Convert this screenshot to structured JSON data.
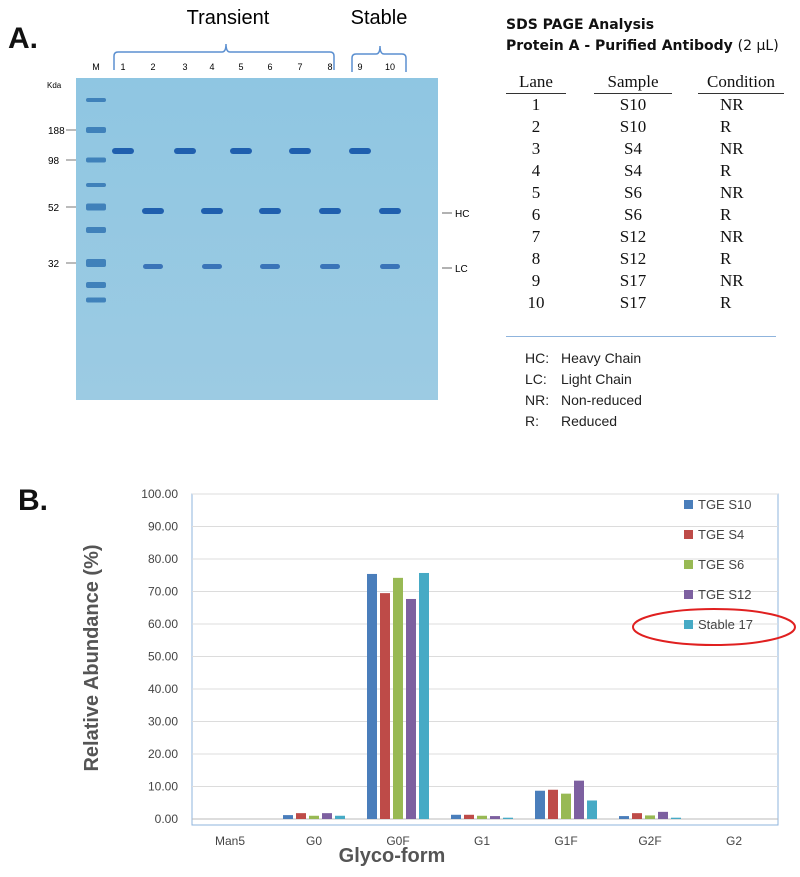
{
  "panel_a": {
    "label": "A.",
    "gel": {
      "group_labels": [
        "Transient",
        "Stable"
      ],
      "lane_labels": [
        "M",
        "1",
        "2",
        "3",
        "4",
        "5",
        "6",
        "7",
        "8",
        "9",
        "10"
      ],
      "kda_label": "Kda",
      "markers": [
        "188",
        "98",
        "52",
        "32"
      ],
      "band_labels": [
        "HC",
        "LC"
      ]
    },
    "title": "SDS PAGE Analysis",
    "subtitle_bold": "Protein A - Purified Antibody",
    "subtitle_normal": "(2 µL)",
    "table": {
      "headers": [
        "Lane",
        "Sample",
        "Condition"
      ],
      "rows": [
        [
          "1",
          "S10",
          "NR"
        ],
        [
          "2",
          "S10",
          "R"
        ],
        [
          "3",
          "S4",
          "NR"
        ],
        [
          "4",
          "S4",
          "R"
        ],
        [
          "5",
          "S6",
          "NR"
        ],
        [
          "6",
          "S6",
          "R"
        ],
        [
          "7",
          "S12",
          "NR"
        ],
        [
          "8",
          "S12",
          "R"
        ],
        [
          "9",
          "S17",
          "NR"
        ],
        [
          "10",
          "S17",
          "R"
        ]
      ]
    },
    "key": [
      [
        "HC:",
        "Heavy Chain"
      ],
      [
        "LC:",
        "Light Chain"
      ],
      [
        "NR:",
        "Non-reduced"
      ],
      [
        "R:",
        "Reduced"
      ]
    ]
  },
  "panel_b": {
    "label": "B."
  },
  "chart_data": {
    "type": "bar",
    "xlabel": "Glyco-form",
    "ylabel": "Relative Abundance (%)",
    "ylim": [
      0,
      100
    ],
    "yticks": [
      "0.00",
      "10.00",
      "20.00",
      "30.00",
      "40.00",
      "50.00",
      "60.00",
      "70.00",
      "80.00",
      "90.00",
      "100.00"
    ],
    "grid": true,
    "legend_position": "right",
    "categories": [
      "Man5",
      "G0",
      "G0F",
      "G1",
      "G1F",
      "G2F",
      "G2"
    ],
    "series": [
      {
        "name": "TGE S10",
        "color": "#4a7ebb",
        "values": [
          0,
          1.2,
          75.4,
          1.3,
          8.7,
          0.9,
          0
        ]
      },
      {
        "name": "TGE S4",
        "color": "#be4b48",
        "values": [
          0,
          1.8,
          69.5,
          1.3,
          9.0,
          1.8,
          0
        ]
      },
      {
        "name": "TGE S6",
        "color": "#98b954",
        "values": [
          0,
          1.0,
          74.2,
          1.0,
          7.8,
          1.1,
          0
        ]
      },
      {
        "name": "TGE S12",
        "color": "#7d60a0",
        "values": [
          0,
          1.8,
          67.7,
          0.9,
          11.8,
          2.2,
          0
        ]
      },
      {
        "name": "Stable 17",
        "color": "#46aac5",
        "values": [
          0,
          1.0,
          75.7,
          0.4,
          5.7,
          0.4,
          0
        ]
      }
    ],
    "highlight": {
      "series": "Stable 17",
      "color": "#e02020"
    }
  }
}
